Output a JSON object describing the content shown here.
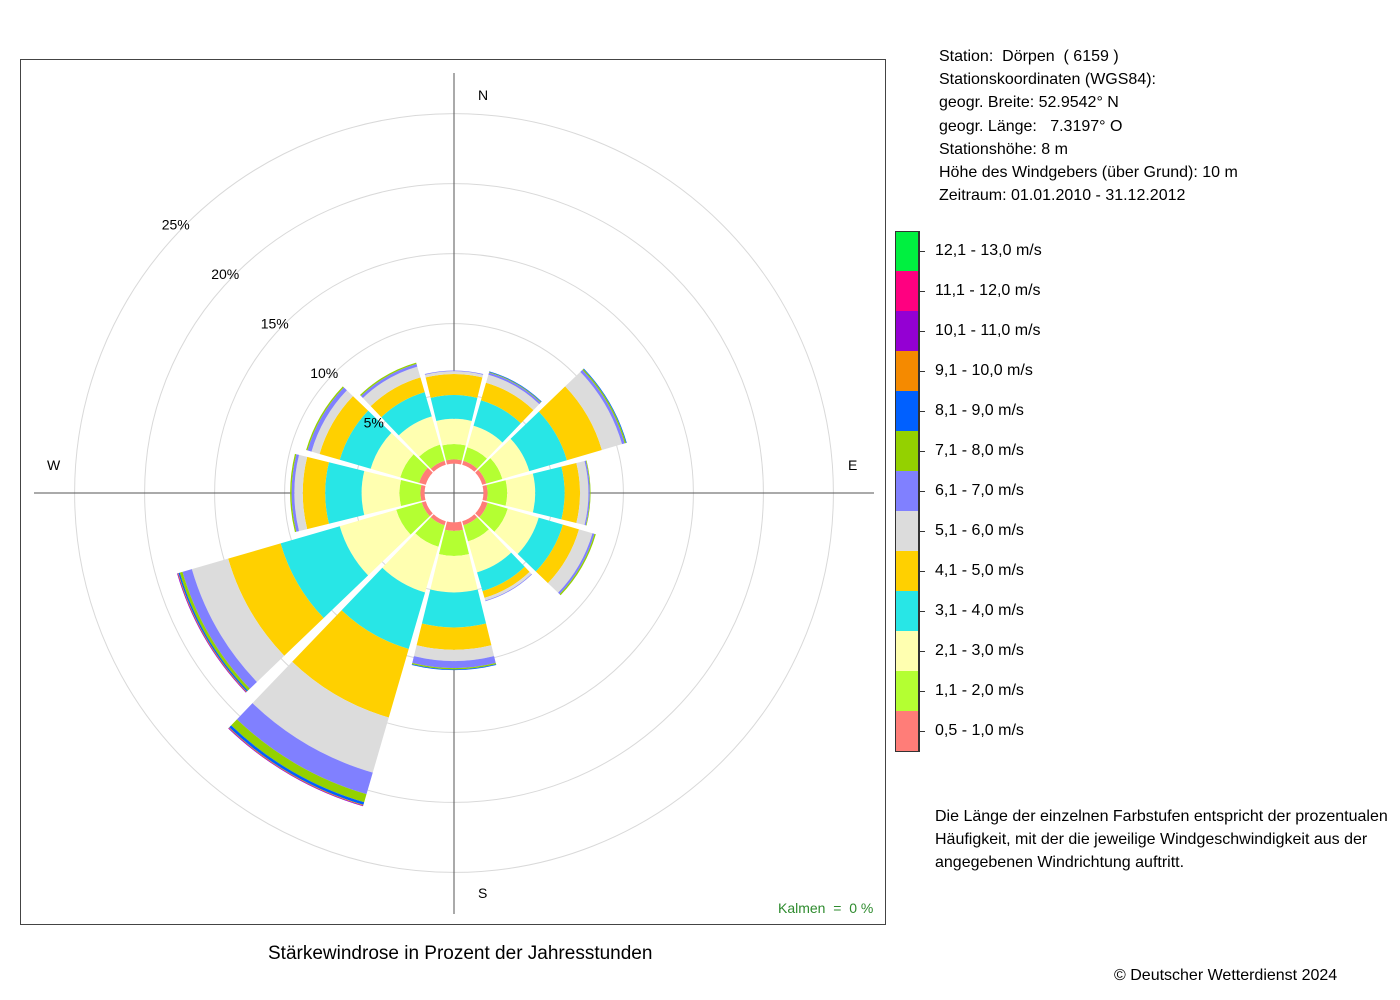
{
  "station_info": [
    "Station:  Dörpen  ( 6159 )",
    "Stationskoordinaten (WGS84):",
    "geogr. Breite: 52.9542° N",
    "geogr. Länge:   7.3197° O",
    "Stationshöhe: 8 m",
    "Höhe des Windgebers (über Grund): 10 m",
    "Zeitraum: 01.01.2010 - 31.12.2012"
  ],
  "legend": [
    {
      "label": "12,1 - 13,0 m/s",
      "color": "#00f040"
    },
    {
      "label": "11,1 - 12,0 m/s",
      "color": "#ff0080"
    },
    {
      "label": "10,1 - 11,0 m/s",
      "color": "#9400d3"
    },
    {
      "label": "9,1 - 10,0 m/s",
      "color": "#f58a00"
    },
    {
      "label": "8,1 - 9,0 m/s",
      "color": "#0060ff"
    },
    {
      "label": "7,1 - 8,0 m/s",
      "color": "#94d100"
    },
    {
      "label": "6,1 - 7,0 m/s",
      "color": "#8080ff"
    },
    {
      "label": "5,1 - 6,0 m/s",
      "color": "#dcdcdc"
    },
    {
      "label": "4,1 - 5,0 m/s",
      "color": "#ffd000"
    },
    {
      "label": "3,1 - 4,0 m/s",
      "color": "#28e6e6"
    },
    {
      "label": "2,1 - 3,0 m/s",
      "color": "#ffffb0"
    },
    {
      "label": "1,1 - 2,0 m/s",
      "color": "#b4ff32"
    },
    {
      "label": "0,5 - 1,0 m/s",
      "color": "#ff7d78"
    }
  ],
  "note": [
    "Die Länge der einzelnen Farbstufen entspricht der prozentualen",
    "Häufigkeit, mit der die jeweilige Windgeschwindigkeit aus der",
    "angegebenen Windrichtung auftritt."
  ],
  "copyright": "© Deutscher Wetterdienst  2024",
  "chart_data": {
    "type": "windrose",
    "title": "Stärkewindrose in Prozent der Jahresstunden",
    "calm_label": "Kalmen  =  0 %",
    "directions": [
      "N",
      "E",
      "S",
      "W"
    ],
    "rings": [
      {
        "value": 5,
        "label": "5%"
      },
      {
        "value": 10,
        "label": "10%"
      },
      {
        "value": 15,
        "label": "15%"
      },
      {
        "value": 20,
        "label": "20%"
      },
      {
        "value": 25,
        "label": "25%"
      }
    ],
    "sector_width_deg": 30,
    "inner_offset_pct": 2.1,
    "speed_classes": [
      "0,5 - 1,0 m/s",
      "1,1 - 2,0 m/s",
      "2,1 - 3,0 m/s",
      "3,1 - 4,0 m/s",
      "4,1 - 5,0 m/s",
      "5,1 - 6,0 m/s",
      "6,1 - 7,0 m/s",
      "7,1 - 8,0 m/s",
      "8,1 - 9,0 m/s",
      "9,1 - 10,0 m/s",
      "10,1 - 11,0 m/s",
      "11,1 - 12,0 m/s",
      "12,1 - 13,0 m/s"
    ],
    "class_colors": [
      "#ff7d78",
      "#b4ff32",
      "#ffffb0",
      "#28e6e6",
      "#ffd000",
      "#dcdcdc",
      "#8080ff",
      "#94d100",
      "#0060ff",
      "#f58a00",
      "#9400d3",
      "#ff0080",
      "#00f040"
    ],
    "sectors": [
      {
        "direction_deg": 0,
        "values": [
          0.3,
          1.1,
          1.8,
          1.7,
          1.5,
          0.2,
          0.05,
          0,
          0,
          0,
          0,
          0,
          0
        ]
      },
      {
        "direction_deg": 30,
        "values": [
          0.3,
          1.0,
          1.6,
          1.9,
          1.3,
          0.6,
          0.15,
          0.05,
          0.05,
          0,
          0,
          0,
          0
        ]
      },
      {
        "direction_deg": 60,
        "values": [
          0.3,
          1.2,
          2.0,
          2.8,
          2.6,
          1.5,
          0.2,
          0.1,
          0.05,
          0,
          0,
          0,
          0
        ]
      },
      {
        "direction_deg": 90,
        "values": [
          0.3,
          1.4,
          2.0,
          2.1,
          1.1,
          0.6,
          0.1,
          0.05,
          0,
          0,
          0,
          0,
          0
        ]
      },
      {
        "direction_deg": 120,
        "values": [
          0.4,
          1.5,
          2.3,
          1.8,
          1.2,
          1.0,
          0.15,
          0.1,
          0,
          0,
          0,
          0,
          0
        ]
      },
      {
        "direction_deg": 150,
        "values": [
          0.3,
          1.2,
          2.3,
          1.4,
          0.5,
          0.2,
          0.05,
          0,
          0,
          0,
          0,
          0,
          0
        ]
      },
      {
        "direction_deg": 180,
        "values": [
          0.6,
          1.8,
          2.6,
          2.5,
          1.6,
          0.8,
          0.5,
          0.1,
          0.05,
          0,
          0,
          0,
          0
        ]
      },
      {
        "direction_deg": 210,
        "values": [
          0.3,
          1.6,
          3.4,
          4.2,
          5.1,
          4.1,
          1.6,
          0.6,
          0.2,
          0.05,
          0.05,
          0,
          0
        ]
      },
      {
        "direction_deg": 240,
        "values": [
          0.3,
          1.9,
          4.2,
          4.4,
          3.9,
          2.7,
          0.7,
          0.2,
          0.1,
          0.05,
          0.05,
          0,
          0
        ]
      },
      {
        "direction_deg": 270,
        "values": [
          0.3,
          1.5,
          2.7,
          2.6,
          1.6,
          0.6,
          0.2,
          0.1,
          0,
          0,
          0,
          0,
          0
        ]
      },
      {
        "direction_deg": 300,
        "values": [
          0.5,
          1.4,
          2.2,
          2.3,
          1.5,
          0.6,
          0.3,
          0.1,
          0,
          0,
          0,
          0,
          0
        ]
      },
      {
        "direction_deg": 330,
        "values": [
          0.3,
          1.2,
          2.1,
          1.8,
          1.1,
          0.8,
          0.2,
          0.1,
          0,
          0,
          0,
          0,
          0
        ]
      }
    ]
  }
}
